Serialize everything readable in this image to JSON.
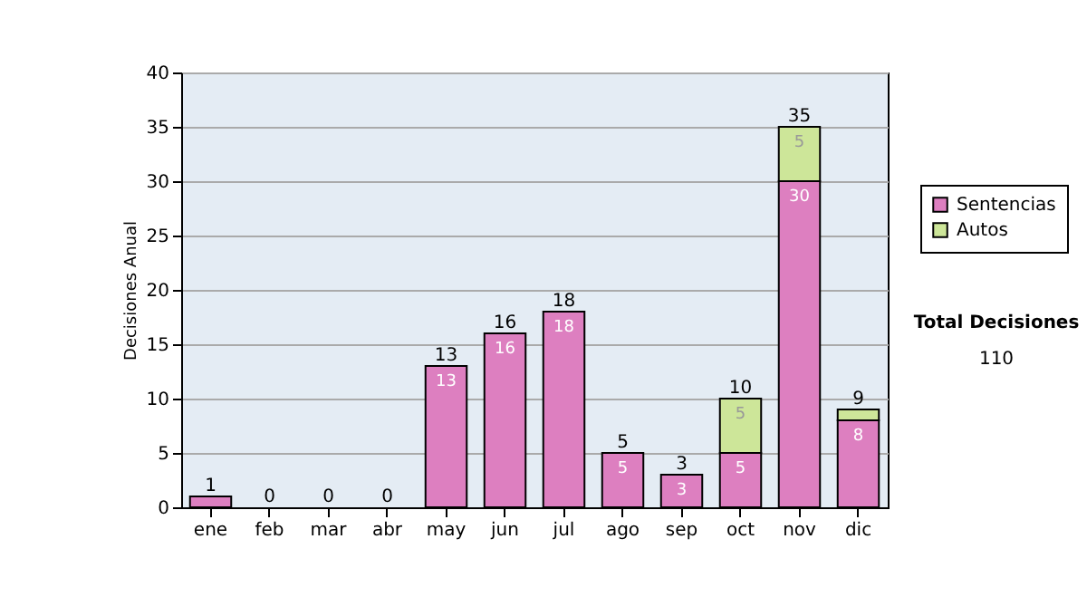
{
  "chart_data": {
    "type": "bar",
    "stacked": true,
    "ylabel": "Decisiones Anual",
    "categories": [
      "ene",
      "feb",
      "mar",
      "abr",
      "may",
      "jun",
      "jul",
      "ago",
      "sep",
      "oct",
      "nov",
      "dic"
    ],
    "series": [
      {
        "name": "Sentencias",
        "color": "#dd7fc0",
        "values": [
          1,
          0,
          0,
          0,
          13,
          16,
          18,
          5,
          3,
          5,
          30,
          8
        ],
        "value_labels": [
          null,
          null,
          null,
          null,
          "13",
          "16",
          "18",
          "5",
          "3",
          "5",
          "30",
          "8"
        ]
      },
      {
        "name": "Autos",
        "color": "#cde699",
        "values": [
          0,
          0,
          0,
          0,
          0,
          0,
          0,
          0,
          0,
          5,
          5,
          1
        ],
        "value_labels": [
          null,
          null,
          null,
          null,
          null,
          null,
          null,
          null,
          null,
          "5",
          "5",
          null
        ]
      }
    ],
    "totals": [
      "1",
      "0",
      "0",
      "0",
      "13",
      "16",
      "18",
      "5",
      "3",
      "10",
      "35",
      "9"
    ],
    "ylim": [
      0,
      40
    ],
    "yticks": [
      0,
      5,
      10,
      15,
      20,
      25,
      30,
      35,
      40
    ],
    "grid": "y",
    "legend": "right",
    "annotations": [
      "Total Decisiones",
      "110"
    ]
  }
}
